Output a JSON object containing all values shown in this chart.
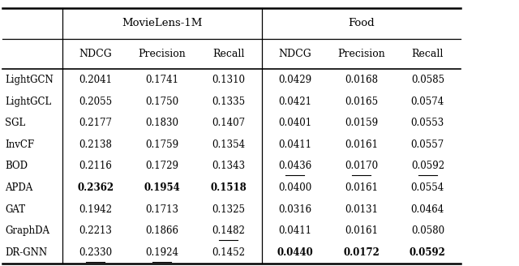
{
  "rows": [
    [
      "LightGCN",
      "0.2041",
      "0.1741",
      "0.1310",
      "0.0429",
      "0.0168",
      "0.0585"
    ],
    [
      "LightGCL",
      "0.2055",
      "0.1750",
      "0.1335",
      "0.0421",
      "0.0165",
      "0.0574"
    ],
    [
      "SGL",
      "0.2177",
      "0.1830",
      "0.1407",
      "0.0401",
      "0.0159",
      "0.0553"
    ],
    [
      "InvCF",
      "0.2138",
      "0.1759",
      "0.1354",
      "0.0411",
      "0.0161",
      "0.0557"
    ],
    [
      "BOD",
      "0.2116",
      "0.1729",
      "0.1343",
      "0.0436",
      "0.0170",
      "0.0592"
    ],
    [
      "APDA",
      "0.2362",
      "0.1954",
      "0.1518",
      "0.0400",
      "0.0161",
      "0.0554"
    ],
    [
      "GAT",
      "0.1942",
      "0.1713",
      "0.1325",
      "0.0316",
      "0.0131",
      "0.0464"
    ],
    [
      "GraphDA",
      "0.2213",
      "0.1866",
      "0.1482",
      "0.0411",
      "0.0161",
      "0.0580"
    ],
    [
      "DR-GNN",
      "0.2330",
      "0.1924",
      "0.1452",
      "0.0440",
      "0.0172",
      "0.0592"
    ]
  ],
  "bold_cells": {
    "APDA": [
      1,
      2,
      3
    ],
    "DR-GNN": [
      4,
      5,
      6
    ]
  },
  "underline_cells": {
    "BOD": [
      4,
      5,
      6
    ],
    "GraphDA": [
      3
    ],
    "DR-GNN": [
      1,
      2
    ]
  },
  "col_headers": [
    "NDCG",
    "Precision",
    "Recall",
    "NDCG",
    "Precision",
    "Recall"
  ],
  "group_headers": [
    "MovieLens-1M",
    "Food"
  ],
  "bg_color": "#ffffff",
  "text_color": "#000000",
  "font_size": 8.5,
  "header_font_size": 9.5
}
